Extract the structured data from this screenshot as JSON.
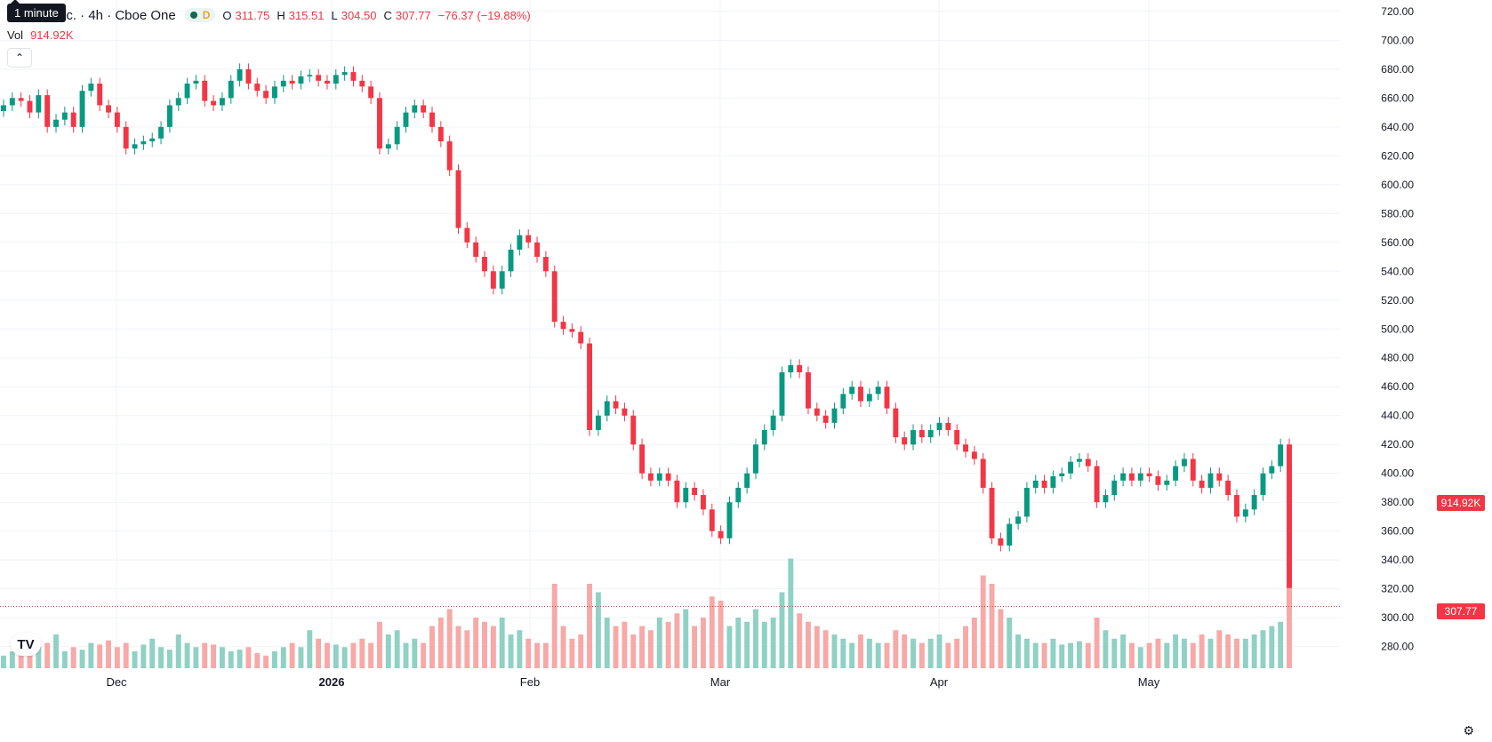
{
  "legend": {
    "symbol_title": "nc. · 4h · Cboe One",
    "tooltip": "1 minute",
    "status_badge": "D",
    "open_label": "O",
    "open_value": "311.75",
    "high_label": "H",
    "high_value": "315.51",
    "low_label": "L",
    "low_value": "304.50",
    "close_label": "C",
    "close_value": "307.77",
    "change_value": "−76.37 (−19.88%)",
    "volume_label": "Vol",
    "volume_value": "914.92K"
  },
  "price_tags": {
    "volume_tag": "914.92K",
    "last_price_tag": "307.77"
  },
  "colors": {
    "up": "#089981",
    "down": "#f23645",
    "up_vol": "#8fd1c4",
    "down_vol": "#f7a9a7"
  },
  "chart_data": {
    "type": "candlestick",
    "y_axis_ticks": [
      280,
      300,
      320,
      340,
      360,
      380,
      400,
      420,
      440,
      460,
      480,
      500,
      520,
      540,
      560,
      580,
      600,
      620,
      640,
      660,
      680,
      700,
      720
    ],
    "ylim": [
      265,
      723
    ],
    "x_axis_labels": [
      "Dec",
      "2026",
      "Feb",
      "Mar",
      "Apr",
      "May"
    ],
    "last_price": 307.77,
    "closes": [
      655,
      660,
      658,
      650,
      662,
      640,
      645,
      650,
      640,
      665,
      670,
      655,
      650,
      640,
      625,
      628,
      630,
      632,
      640,
      655,
      660,
      670,
      672,
      658,
      655,
      660,
      672,
      680,
      670,
      665,
      660,
      668,
      672,
      670,
      675,
      676,
      672,
      670,
      676,
      678,
      672,
      668,
      660,
      625,
      628,
      640,
      650,
      655,
      650,
      640,
      630,
      610,
      570,
      560,
      550,
      540,
      528,
      540,
      555,
      565,
      560,
      550,
      540,
      505,
      500,
      498,
      490,
      430,
      440,
      450,
      445,
      440,
      420,
      400,
      395,
      400,
      395,
      380,
      390,
      385,
      375,
      360,
      355,
      380,
      390,
      400,
      420,
      430,
      440,
      470,
      475,
      470,
      445,
      440,
      435,
      445,
      455,
      460,
      450,
      455,
      460,
      445,
      425,
      420,
      430,
      425,
      430,
      435,
      430,
      420,
      415,
      410,
      390,
      355,
      350,
      365,
      370,
      390,
      395,
      390,
      398,
      400,
      408,
      410,
      405,
      380,
      385,
      395,
      400,
      395,
      400,
      398,
      392,
      395,
      405,
      410,
      395,
      390,
      400,
      395,
      385,
      370,
      375,
      385,
      400,
      405,
      420,
      308
    ],
    "volumes_relative": [
      0.15,
      0.2,
      0.18,
      0.35,
      0.25,
      0.3,
      0.4,
      0.2,
      0.25,
      0.22,
      0.3,
      0.28,
      0.33,
      0.25,
      0.3,
      0.2,
      0.28,
      0.35,
      0.25,
      0.22,
      0.4,
      0.3,
      0.25,
      0.3,
      0.28,
      0.25,
      0.2,
      0.22,
      0.25,
      0.18,
      0.15,
      0.2,
      0.25,
      0.3,
      0.25,
      0.45,
      0.35,
      0.3,
      0.28,
      0.25,
      0.3,
      0.35,
      0.3,
      0.55,
      0.4,
      0.45,
      0.3,
      0.35,
      0.3,
      0.5,
      0.6,
      0.7,
      0.5,
      0.45,
      0.6,
      0.55,
      0.5,
      0.6,
      0.4,
      0.45,
      0.35,
      0.3,
      0.3,
      1.0,
      0.5,
      0.35,
      0.4,
      1.0,
      0.9,
      0.6,
      0.5,
      0.55,
      0.4,
      0.5,
      0.45,
      0.6,
      0.55,
      0.65,
      0.7,
      0.5,
      0.6,
      0.85,
      0.8,
      0.5,
      0.6,
      0.55,
      0.7,
      0.55,
      0.6,
      0.9,
      1.3,
      0.65,
      0.55,
      0.5,
      0.45,
      0.4,
      0.35,
      0.3,
      0.4,
      0.35,
      0.3,
      0.3,
      0.45,
      0.4,
      0.35,
      0.3,
      0.35,
      0.4,
      0.3,
      0.35,
      0.5,
      0.6,
      1.1,
      1.0,
      0.7,
      0.6,
      0.4,
      0.35,
      0.3,
      0.3,
      0.35,
      0.28,
      0.3,
      0.32,
      0.3,
      0.6,
      0.45,
      0.35,
      0.4,
      0.3,
      0.25,
      0.3,
      0.35,
      0.3,
      0.4,
      0.35,
      0.3,
      0.4,
      0.35,
      0.45,
      0.4,
      0.35,
      0.35,
      0.4,
      0.45,
      0.5,
      0.55,
      0.95
    ]
  }
}
